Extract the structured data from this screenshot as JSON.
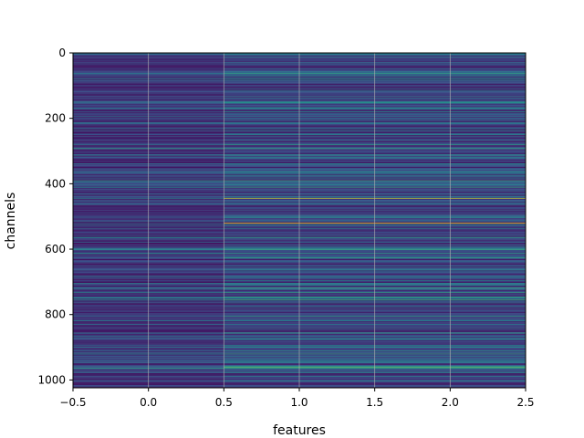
{
  "chart_data": {
    "type": "heatmap",
    "title": "",
    "xlabel": "features",
    "ylabel": "channels",
    "xlim": [
      -0.5,
      2.5
    ],
    "ylim": [
      1024,
      0
    ],
    "y_inverted": true,
    "grid": true,
    "colormap": "viridis",
    "x_ticks": [
      "−0.5",
      "0.0",
      "0.5",
      "1.0",
      "1.5",
      "2.0",
      "2.5"
    ],
    "x_tick_values": [
      -0.5,
      0.0,
      0.5,
      1.0,
      1.5,
      2.0,
      2.5
    ],
    "y_ticks": [
      "0",
      "200",
      "400",
      "600",
      "800",
      "1000"
    ],
    "y_tick_values": [
      0,
      200,
      400,
      600,
      800,
      1000
    ],
    "columns": [
      0,
      1,
      2
    ],
    "rows": 1024,
    "value_range": [
      0.0,
      1.0
    ],
    "notable_rows": [
      {
        "channel": 445,
        "column_values": [
          0.45,
          0.9,
          0.9
        ]
      },
      {
        "channel": 520,
        "column_values": [
          0.35,
          1.0,
          1.0
        ]
      },
      {
        "channel": 755,
        "column_values": [
          0.4,
          0.6,
          0.6
        ]
      },
      {
        "channel": 960,
        "column_values": [
          0.3,
          0.75,
          0.75
        ]
      }
    ]
  },
  "colors": {
    "viridis_low": "#440154",
    "viridis_mid_low": "#3b528b",
    "viridis_mid": "#21918c",
    "viridis_mid_high": "#5ec962",
    "viridis_high": "#fde725",
    "grid": "#b0b0b0",
    "axis": "#000000"
  }
}
